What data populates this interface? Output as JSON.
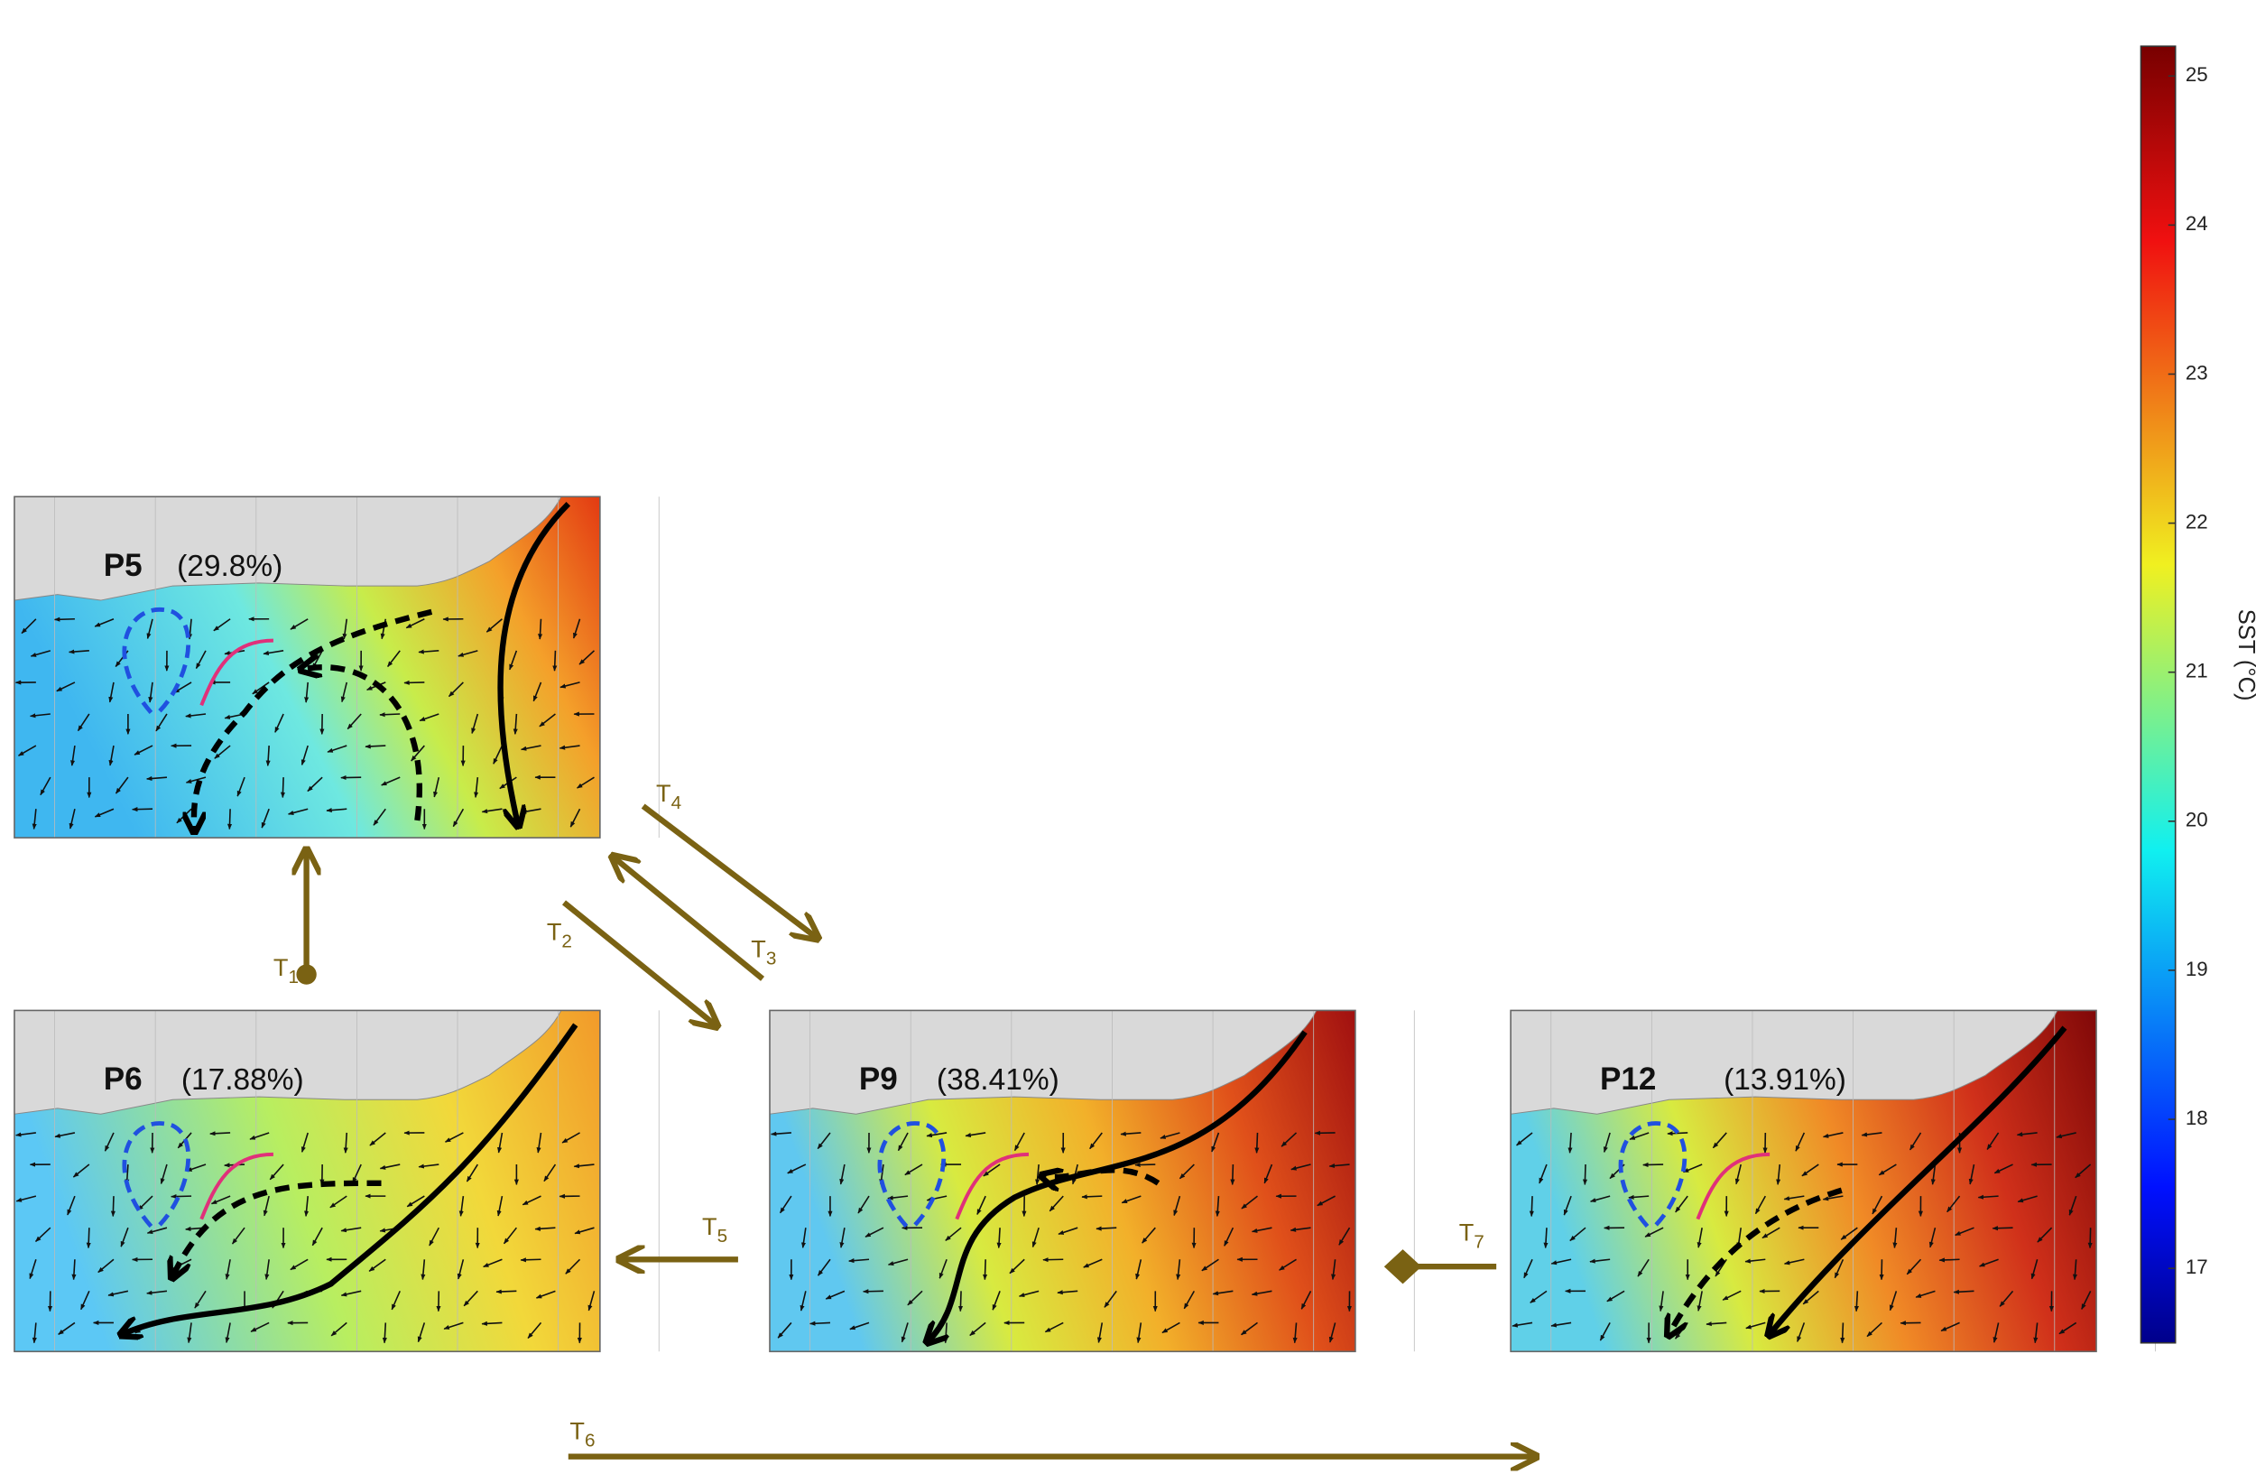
{
  "panels": [
    {
      "name": "P5",
      "share": "(29.8%)"
    },
    {
      "name": "P6",
      "share": "(17.88%)"
    },
    {
      "name": "P9",
      "share": "(38.41%)"
    },
    {
      "name": "P12",
      "share": "(13.91%)"
    }
  ],
  "transitions": [
    {
      "label": "T",
      "sub": "1"
    },
    {
      "label": "T",
      "sub": "2"
    },
    {
      "label": "T",
      "sub": "3"
    },
    {
      "label": "T",
      "sub": "4"
    },
    {
      "label": "T",
      "sub": "5"
    },
    {
      "label": "T",
      "sub": "6"
    },
    {
      "label": "T",
      "sub": "7"
    }
  ],
  "colorbar": {
    "label": "SST (°C)",
    "range": [
      16.5,
      25.2
    ],
    "ticks": [
      17,
      18,
      19,
      20,
      21,
      22,
      23,
      24,
      25
    ]
  }
}
